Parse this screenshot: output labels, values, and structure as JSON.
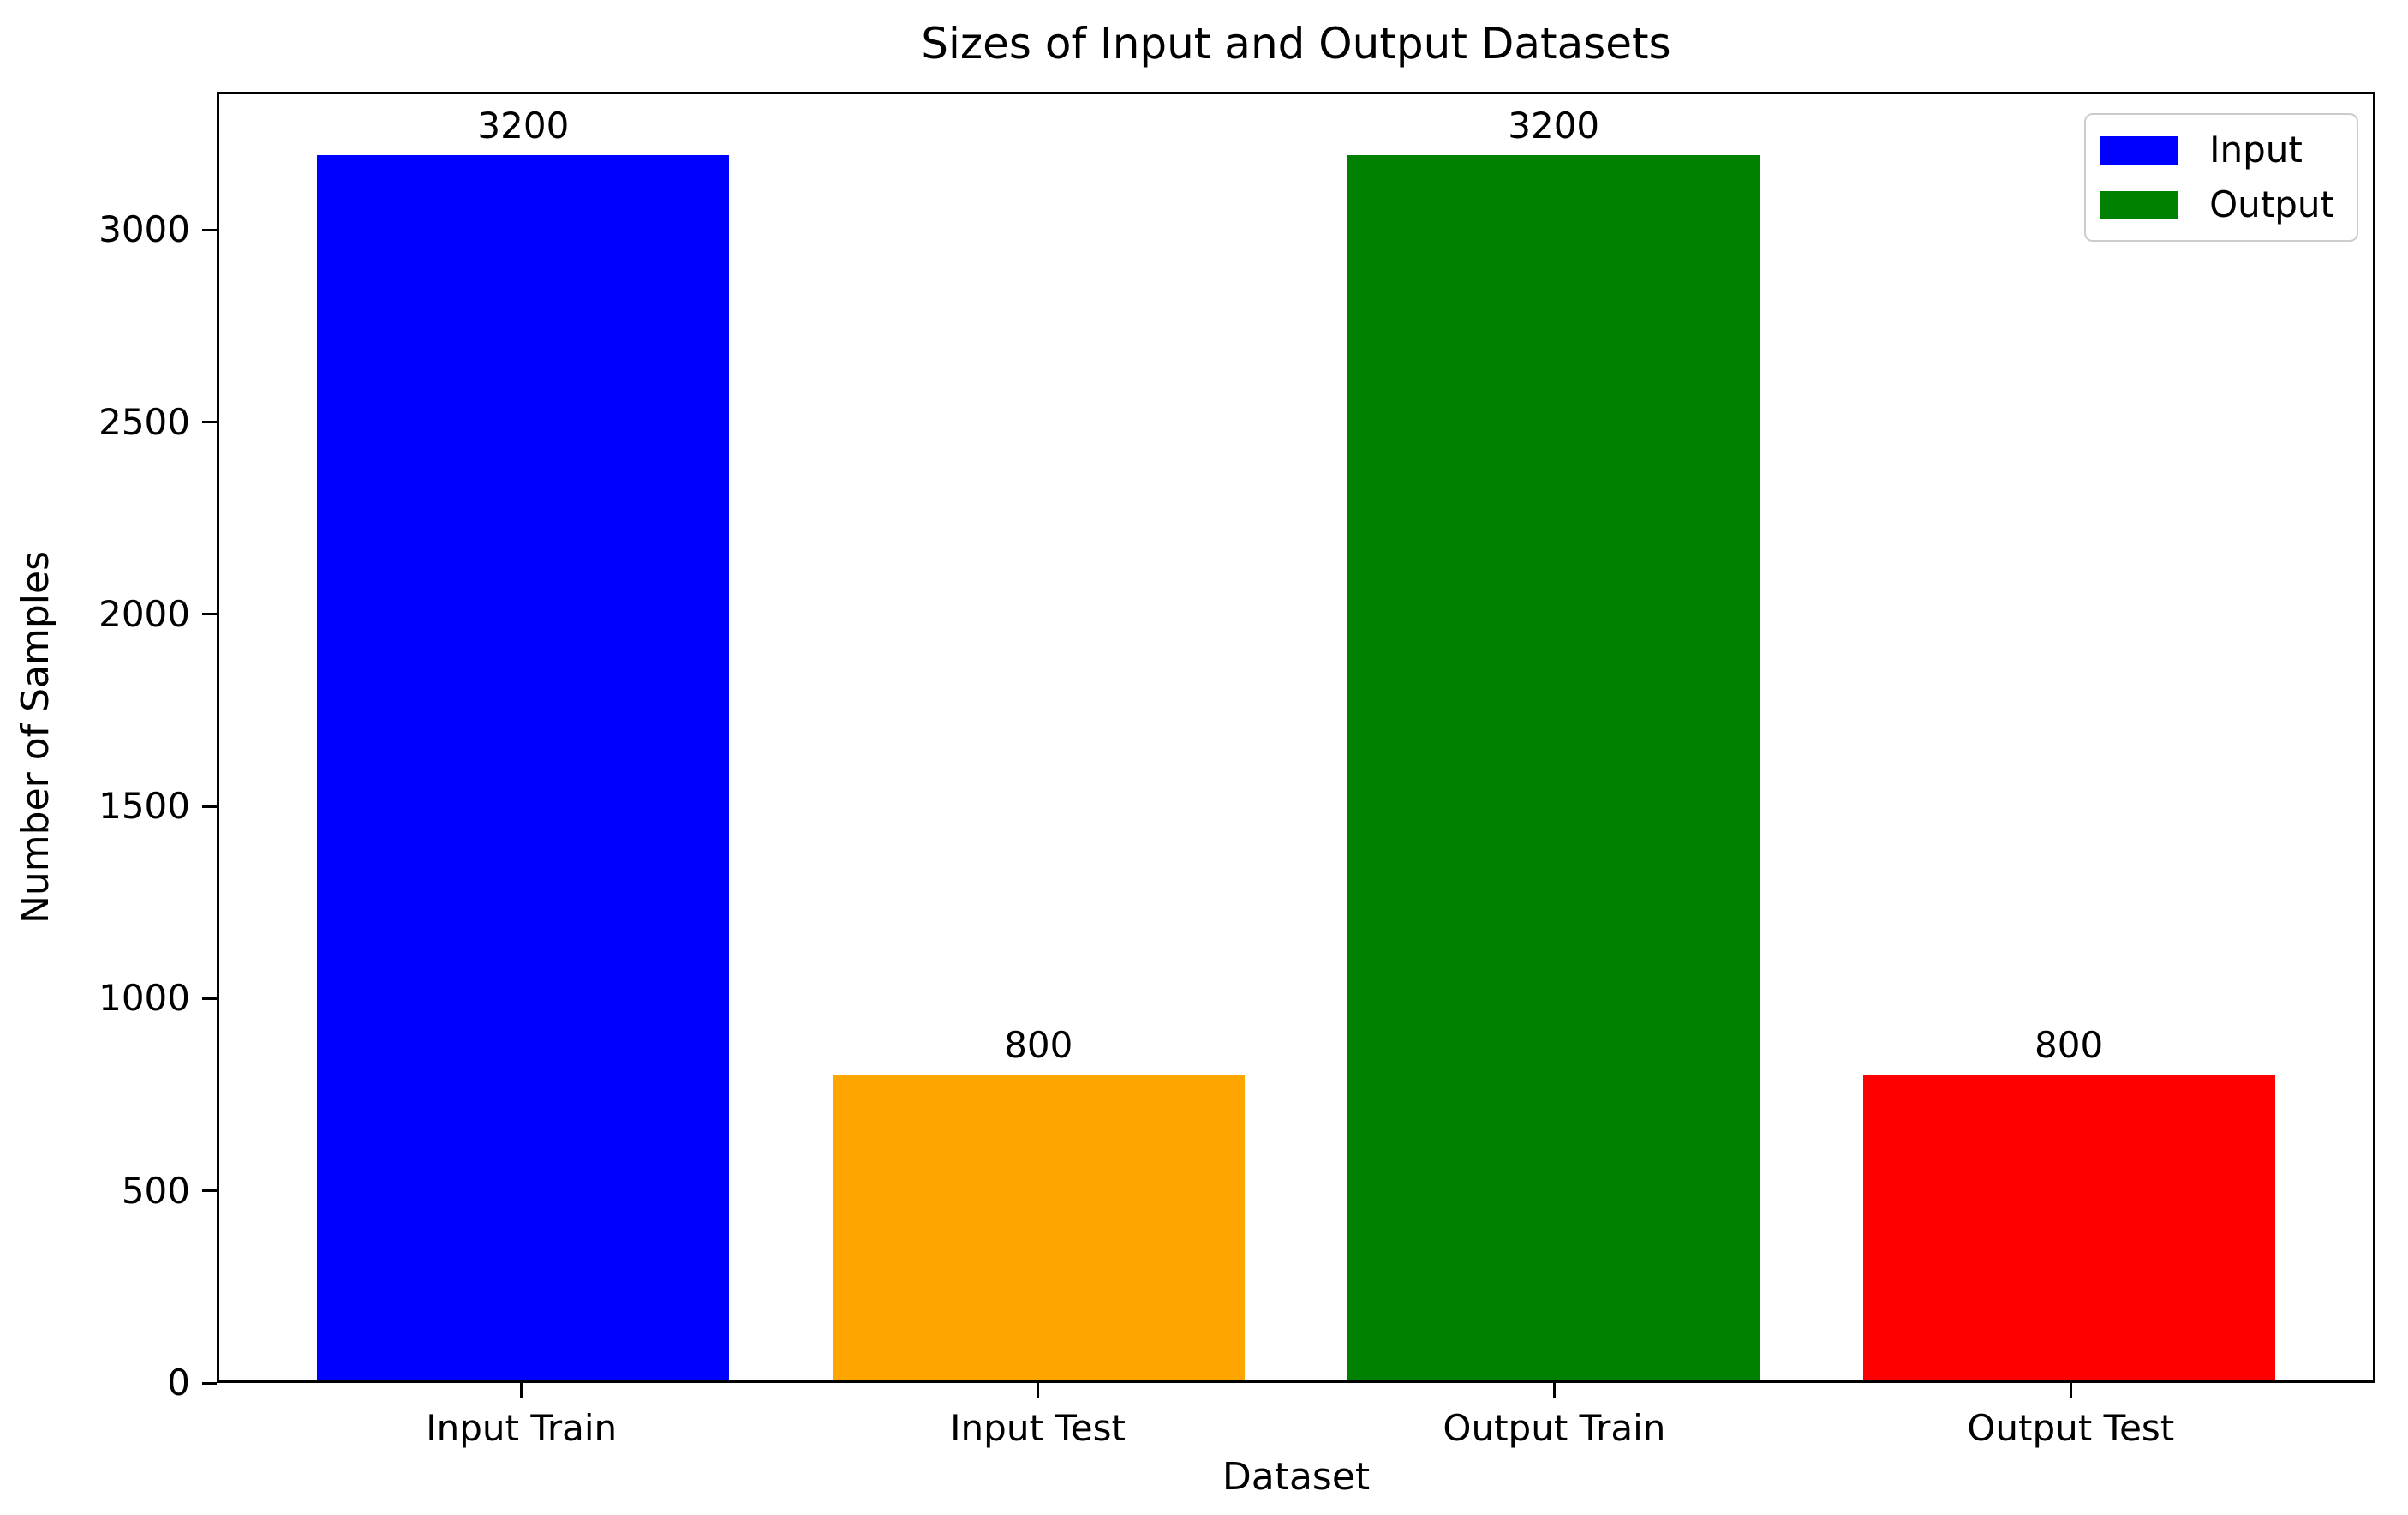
{
  "chart_data": {
    "type": "bar",
    "title": "Sizes of Input and Output Datasets",
    "xlabel": "Dataset",
    "ylabel": "Number of Samples",
    "categories": [
      "Input Train",
      "Input Test",
      "Output Train",
      "Output Test"
    ],
    "values": [
      3200,
      800,
      3200,
      800
    ],
    "bar_labels": [
      "3200",
      "800",
      "3200",
      "800"
    ],
    "bar_colors": [
      "#0000ff",
      "#ffa500",
      "#008000",
      "#ff0000"
    ],
    "bar_width_fraction": 0.8,
    "yticks": [
      0,
      500,
      1000,
      1500,
      2000,
      2500,
      3000
    ],
    "ylim": [
      0,
      3360
    ],
    "grid": false,
    "legend": {
      "position": "upper right",
      "entries": [
        {
          "label": "Input",
          "color": "#0000ff"
        },
        {
          "label": "Output",
          "color": "#008000"
        }
      ]
    }
  }
}
